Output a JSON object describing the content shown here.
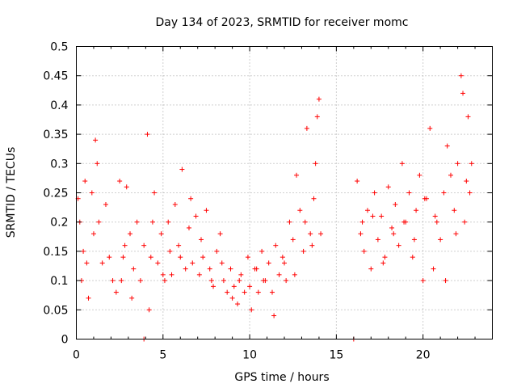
{
  "chart_data": {
    "type": "scatter",
    "title": "Day 134 of 2023, SRMTID for receiver momc",
    "xlabel": "GPS time / hours",
    "ylabel": "SRMTID / TECUs",
    "xlim": [
      0,
      24
    ],
    "ylim": [
      0,
      0.5
    ],
    "xticks": [
      0,
      5,
      10,
      15,
      20
    ],
    "xtick_labels": [
      "0",
      "5",
      "10",
      "15",
      "20"
    ],
    "yticks": [
      0,
      0.05,
      0.1,
      0.15,
      0.2,
      0.25,
      0.3,
      0.35,
      0.4,
      0.45,
      0.5
    ],
    "ytick_labels": [
      "0",
      "0.05",
      "0.1",
      "0.15",
      "0.2",
      "0.25",
      "0.3",
      "0.35",
      "0.4",
      "0.45",
      "0.5"
    ],
    "grid": true,
    "marker": "+",
    "series": [
      {
        "name": "SRMTID",
        "color": "#ff0000",
        "x": [
          0.1,
          0.3,
          0.5,
          0.7,
          0.9,
          1.1,
          1.3,
          1.5,
          1.7,
          1.9,
          2.1,
          2.3,
          2.5,
          2.7,
          2.9,
          3.1,
          3.3,
          3.5,
          3.7,
          3.9,
          4.1,
          4.3,
          4.5,
          4.7,
          4.9,
          5.1,
          5.3,
          5.5,
          5.7,
          5.9,
          6.1,
          6.3,
          6.5,
          6.7,
          6.9,
          7.1,
          7.3,
          7.5,
          7.7,
          7.9,
          8.1,
          8.3,
          8.5,
          8.7,
          8.9,
          9.1,
          9.3,
          9.5,
          9.7,
          9.9,
          10.1,
          10.3,
          10.5,
          10.7,
          10.9,
          11.1,
          11.3,
          11.5,
          11.7,
          11.9,
          12.1,
          12.3,
          12.5,
          12.7,
          12.9,
          13.1,
          13.3,
          13.5,
          13.7,
          13.9,
          14.1,
          16.2,
          16.4,
          16.6,
          16.8,
          17.0,
          17.2,
          17.4,
          17.6,
          17.8,
          18.0,
          18.2,
          18.4,
          18.6,
          18.8,
          19.0,
          19.2,
          19.4,
          19.6,
          19.8,
          20.0,
          20.2,
          20.4,
          20.6,
          20.8,
          21.0,
          21.2,
          21.4,
          21.6,
          21.8,
          22.0,
          22.2,
          22.4,
          22.6,
          22.8,
          3.9,
          16.0,
          0.2,
          0.4,
          0.6,
          1.0,
          1.2,
          2.6,
          2.8,
          3.2,
          4.2,
          4.4,
          5.0,
          5.4,
          6.0,
          6.6,
          7.2,
          7.8,
          8.4,
          9.0,
          9.4,
          10.0,
          10.4,
          10.8,
          11.4,
          12.0,
          12.6,
          13.2,
          13.6,
          13.8,
          14.0,
          16.5,
          17.1,
          17.7,
          18.3,
          18.9,
          19.5,
          20.1,
          20.7,
          21.3,
          21.9,
          22.3,
          22.5,
          22.7
        ],
        "y": [
          0.24,
          0.1,
          0.27,
          0.07,
          0.25,
          0.34,
          0.2,
          0.13,
          0.23,
          0.14,
          0.1,
          0.08,
          0.27,
          0.14,
          0.26,
          0.18,
          0.12,
          0.2,
          0.1,
          0.16,
          0.35,
          0.14,
          0.25,
          0.13,
          0.18,
          0.1,
          0.2,
          0.11,
          0.23,
          0.16,
          0.29,
          0.12,
          0.19,
          0.13,
          0.21,
          0.11,
          0.14,
          0.22,
          0.12,
          0.09,
          0.15,
          0.18,
          0.1,
          0.08,
          0.12,
          0.09,
          0.06,
          0.11,
          0.08,
          0.14,
          0.05,
          0.12,
          0.08,
          0.15,
          0.1,
          0.13,
          0.08,
          0.16,
          0.11,
          0.14,
          0.1,
          0.2,
          0.17,
          0.28,
          0.22,
          0.15,
          0.36,
          0.18,
          0.24,
          0.38,
          0.18,
          0.27,
          0.18,
          0.15,
          0.22,
          0.12,
          0.25,
          0.17,
          0.21,
          0.14,
          0.26,
          0.19,
          0.23,
          0.16,
          0.3,
          0.2,
          0.25,
          0.14,
          0.22,
          0.28,
          0.1,
          0.24,
          0.36,
          0.12,
          0.2,
          0.17,
          0.25,
          0.33,
          0.28,
          0.22,
          0.3,
          0.45,
          0.2,
          0.38,
          0.3,
          0.0,
          0.0,
          0.2,
          0.15,
          0.13,
          0.18,
          0.3,
          0.1,
          0.16,
          0.07,
          0.05,
          0.2,
          0.11,
          0.15,
          0.14,
          0.24,
          0.17,
          0.1,
          0.13,
          0.07,
          0.1,
          0.09,
          0.12,
          0.1,
          0.04,
          0.13,
          0.11,
          0.2,
          0.16,
          0.3,
          0.41,
          0.2,
          0.21,
          0.13,
          0.18,
          0.2,
          0.17,
          0.24,
          0.21,
          0.1,
          0.18,
          0.42,
          0.27,
          0.25
        ]
      }
    ]
  }
}
